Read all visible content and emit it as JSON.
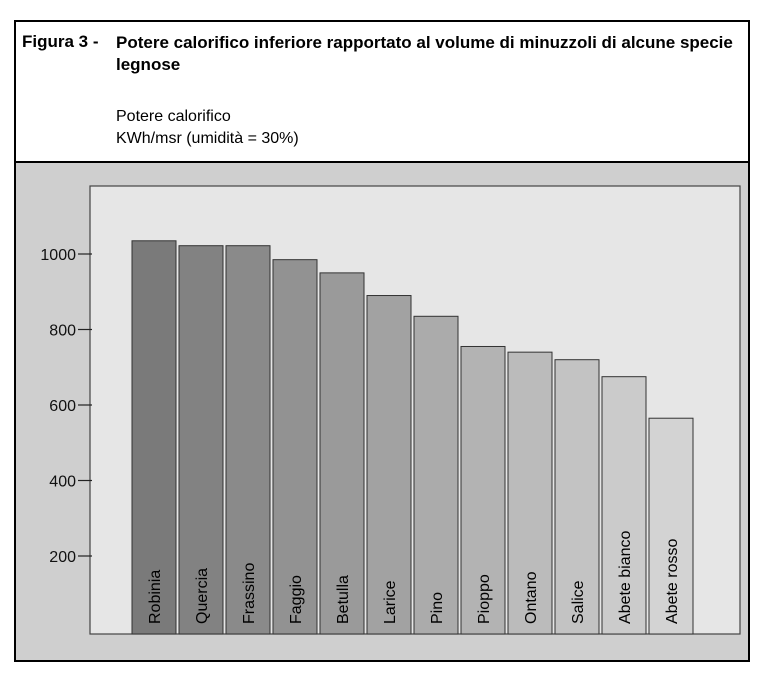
{
  "figure": {
    "label": "Figura 3 -",
    "title": "Potere calorifico inferiore rapportato al volume di minuzzoli di alcune specie legnose",
    "subtitle_line1": "Potere calorifico",
    "subtitle_line2": "KWh/msr (umidità = 30%)"
  },
  "chart_data": {
    "type": "bar",
    "title": "Potere calorifico inferiore rapportato al volume di minuzzoli di alcune specie legnose",
    "ylabel": "Potere calorifico KWh/msr (umidità = 30%)",
    "xlabel": "",
    "categories": [
      "Robinia",
      "Quercia",
      "Frassino",
      "Faggio",
      "Betulla",
      "Larice",
      "Pino",
      "Pioppo",
      "Ontano",
      "Salice",
      "Abete bianco",
      "Abete rosso"
    ],
    "values": [
      1035,
      1022,
      1022,
      985,
      950,
      890,
      835,
      755,
      740,
      720,
      675,
      565
    ],
    "yticks": [
      200,
      400,
      600,
      800,
      1000
    ],
    "ylim": [
      0,
      1200
    ],
    "grid": false,
    "legend": "none",
    "colors": {
      "bar_dark": "#7a7a7a",
      "bar_light": "#d3d3d3",
      "plot_bg": "#e6e6e6",
      "paper_bg": "#cfcfcf"
    }
  }
}
